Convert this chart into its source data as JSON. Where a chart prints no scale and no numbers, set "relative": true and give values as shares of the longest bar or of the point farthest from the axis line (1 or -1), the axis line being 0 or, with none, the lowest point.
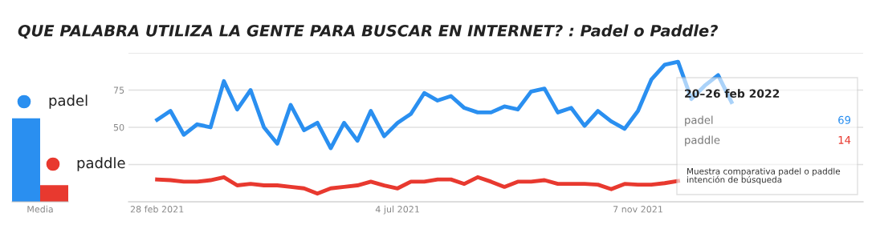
{
  "chart_data": [
    {
      "type": "bar",
      "title": "QUE PALABRA UTILIZA LA GENTE PARA BUSCAR EN INTERNET? : Padel o Paddle?",
      "categories": [
        "Media"
      ],
      "relative": true,
      "tick_labels": "x",
      "legend": "right",
      "series": [
        {
          "name": "padel",
          "color": "#2a8ff0",
          "values": [
            1
          ]
        },
        {
          "name": "paddle",
          "color": "#e8392f",
          "values": [
            0.2
          ]
        }
      ]
    },
    {
      "type": "line",
      "xlim": [
        "2021-02-13",
        "2022-03-05"
      ],
      "ylim": [
        0,
        100
      ],
      "grid": "y",
      "xticks": [
        {
          "value": "2021-02-28",
          "label": "28 feb 2021"
        },
        {
          "value": "2021-07-04",
          "label": "4 jul 2021"
        },
        {
          "value": "2021-11-07",
          "label": "7 nov 2021"
        }
      ],
      "yticks": [
        {
          "value": 25,
          "label": null
        },
        50,
        75,
        {
          "value": 100,
          "label": null
        }
      ],
      "x": [
        "2021-02-28",
        "2021-03-07",
        "2021-03-14",
        "2021-03-21",
        "2021-03-28",
        "2021-04-04",
        "2021-04-11",
        "2021-04-18",
        "2021-04-25",
        "2021-05-02",
        "2021-05-09",
        "2021-05-16",
        "2021-05-23",
        "2021-05-30",
        "2021-06-06",
        "2021-06-13",
        "2021-06-20",
        "2021-06-27",
        "2021-07-04",
        "2021-07-11",
        "2021-07-18",
        "2021-07-25",
        "2021-08-01",
        "2021-08-08",
        "2021-08-15",
        "2021-08-22",
        "2021-08-29",
        "2021-09-05",
        "2021-09-12",
        "2021-09-19",
        "2021-09-26",
        "2021-10-03",
        "2021-10-10",
        "2021-10-17",
        "2021-10-24",
        "2021-10-31",
        "2021-11-07",
        "2021-11-14",
        "2021-11-21",
        "2021-11-28",
        "2021-12-05",
        "2021-12-12",
        "2021-12-19",
        "2021-12-26"
      ],
      "annotations": [
        "20–26 feb 2022",
        "padel",
        "69",
        "paddle",
        "14",
        "Muestra comparativa padel o paddle intención de búsqueda"
      ],
      "series": [
        {
          "color": "#2a8ff0",
          "values": [
            55,
            61,
            45,
            52,
            50,
            81,
            62,
            75,
            50,
            39,
            65,
            48,
            53,
            36,
            53,
            41,
            61,
            44,
            53,
            59,
            73,
            68,
            71,
            63,
            60,
            60,
            64,
            62,
            74,
            76,
            60,
            63,
            51,
            61,
            54,
            49,
            61,
            82,
            92,
            94,
            69,
            78,
            85,
            67
          ]
        },
        {
          "color": "#e8392f",
          "values": [
            15,
            14.5,
            13.5,
            13.5,
            14.5,
            16.5,
            11,
            12,
            11,
            11,
            10,
            9,
            5.5,
            9,
            10,
            11,
            13.5,
            11,
            9,
            13.5,
            13.5,
            15,
            15,
            12,
            16.5,
            13.5,
            10,
            13.5,
            13.5,
            14.5,
            12,
            12,
            12,
            11.5,
            8.5,
            12,
            11.5,
            11.5,
            12.5,
            14,
            null,
            null,
            null,
            null
          ]
        }
      ]
    }
  ]
}
